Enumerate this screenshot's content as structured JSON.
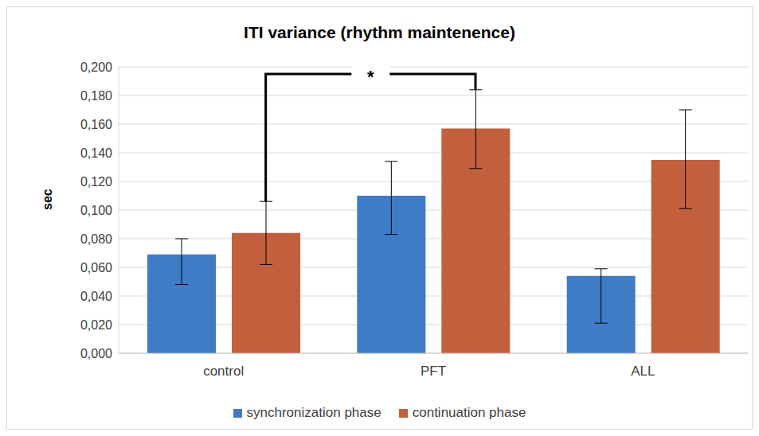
{
  "chart_data": {
    "type": "bar",
    "title": "ITI variance (rhythm maintenence)",
    "y_label": "sec",
    "categories": [
      "control",
      "PFT",
      "ALL"
    ],
    "series": [
      {
        "name": "synchronization phase",
        "color": "#3e7cc6",
        "values": [
          0.069,
          0.11,
          0.054
        ],
        "errors": [
          [
            0.021,
            0.011
          ],
          [
            0.027,
            0.024
          ],
          [
            0.033,
            0.005
          ]
        ]
      },
      {
        "name": "continuation phase",
        "color": "#c2603e",
        "values": [
          0.084,
          0.157,
          0.135
        ],
        "errors": [
          [
            0.022,
            0.022
          ],
          [
            0.028,
            0.027
          ],
          [
            0.034,
            0.035
          ]
        ]
      }
    ],
    "ylim": [
      0,
      0.2
    ],
    "yticks": [
      {
        "value": 0,
        "label": "0,000"
      },
      {
        "value": 0.02,
        "label": "0,020"
      },
      {
        "value": 0.04,
        "label": "0,040"
      },
      {
        "value": 0.06,
        "label": "0,060"
      },
      {
        "value": 0.08,
        "label": "0,080"
      },
      {
        "value": 0.1,
        "label": "0,100"
      },
      {
        "value": 0.12,
        "label": "0,120"
      },
      {
        "value": 0.14,
        "label": "0,140"
      },
      {
        "value": 0.16,
        "label": "0,160"
      },
      {
        "value": 0.18,
        "label": "0,180"
      },
      {
        "value": 0.2,
        "label": "0,200"
      }
    ],
    "grid": true,
    "legend": "bottom",
    "annotations": [
      {
        "text": "*",
        "between": [
          "control",
          "PFT"
        ],
        "series": "continuation phase",
        "y": 0.195
      }
    ]
  }
}
